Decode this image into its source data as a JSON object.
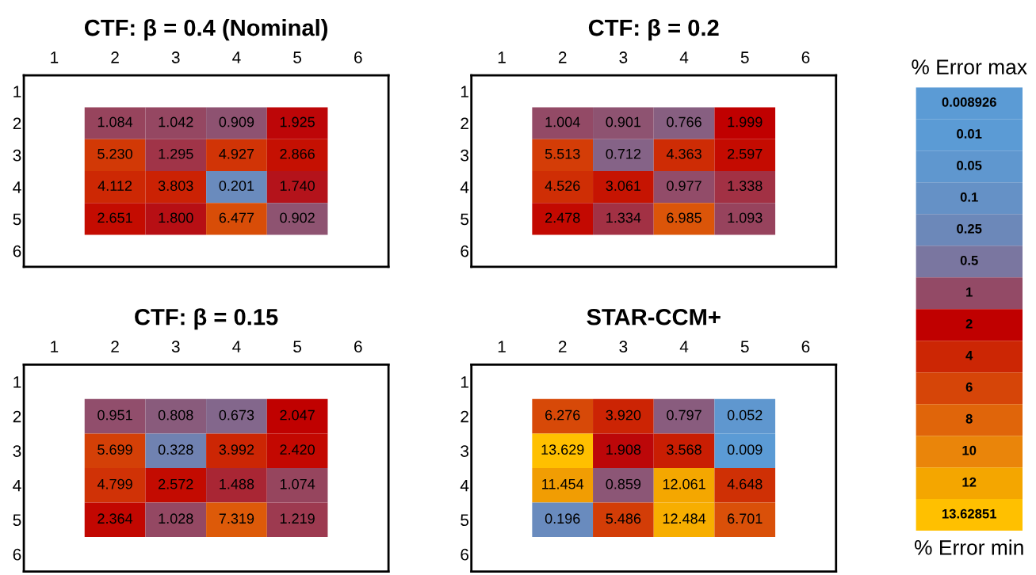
{
  "chart_data": [
    {
      "type": "heatmap",
      "title": "CTF: β = 0.4 (Nominal)",
      "categories": [
        "1",
        "2",
        "3",
        "4",
        "5",
        "6"
      ],
      "y_categories": [
        "1",
        "2",
        "3",
        "4",
        "5",
        "6"
      ],
      "cells": [
        [
          null,
          null,
          null,
          null,
          null,
          null
        ],
        [
          null,
          1.084,
          1.042,
          0.909,
          1.925,
          null
        ],
        [
          null,
          5.23,
          1.295,
          4.927,
          2.866,
          null
        ],
        [
          null,
          4.112,
          3.803,
          0.201,
          1.74,
          null
        ],
        [
          null,
          2.651,
          1.8,
          6.477,
          0.902,
          null
        ],
        [
          null,
          null,
          null,
          null,
          null,
          null
        ]
      ],
      "cell_labels": [
        [
          null,
          null,
          null,
          null,
          null,
          null
        ],
        [
          null,
          "1.084",
          "1.042",
          "0.909",
          "1.925",
          null
        ],
        [
          null,
          "5.230",
          "1.295",
          "4.927",
          "2.866",
          null
        ],
        [
          null,
          "4.112",
          "3.803",
          "0.201",
          "1.740",
          null
        ],
        [
          null,
          "2.651",
          "1.800",
          "6.477",
          "0.902",
          null
        ],
        [
          null,
          null,
          null,
          null,
          null,
          null
        ]
      ]
    },
    {
      "type": "heatmap",
      "title": "CTF: β = 0.2",
      "categories": [
        "1",
        "2",
        "3",
        "4",
        "5",
        "6"
      ],
      "y_categories": [
        "1",
        "2",
        "3",
        "4",
        "5",
        "6"
      ],
      "cells": [
        [
          null,
          null,
          null,
          null,
          null,
          null
        ],
        [
          null,
          1.004,
          0.901,
          0.766,
          1.999,
          null
        ],
        [
          null,
          5.513,
          0.712,
          4.363,
          2.597,
          null
        ],
        [
          null,
          4.526,
          3.061,
          0.977,
          1.338,
          null
        ],
        [
          null,
          2.478,
          1.334,
          6.985,
          1.093,
          null
        ],
        [
          null,
          null,
          null,
          null,
          null,
          null
        ]
      ],
      "cell_labels": [
        [
          null,
          null,
          null,
          null,
          null,
          null
        ],
        [
          null,
          "1.004",
          "0.901",
          "0.766",
          "1.999",
          null
        ],
        [
          null,
          "5.513",
          "0.712",
          "4.363",
          "2.597",
          null
        ],
        [
          null,
          "4.526",
          "3.061",
          "0.977",
          "1.338",
          null
        ],
        [
          null,
          "2.478",
          "1.334",
          "6.985",
          "1.093",
          null
        ],
        [
          null,
          null,
          null,
          null,
          null,
          null
        ]
      ]
    },
    {
      "type": "heatmap",
      "title": "CTF: β = 0.15",
      "categories": [
        "1",
        "2",
        "3",
        "4",
        "5",
        "6"
      ],
      "y_categories": [
        "1",
        "2",
        "3",
        "4",
        "5",
        "6"
      ],
      "cells": [
        [
          null,
          null,
          null,
          null,
          null,
          null
        ],
        [
          null,
          0.951,
          0.808,
          0.673,
          2.047,
          null
        ],
        [
          null,
          5.699,
          0.328,
          3.992,
          2.42,
          null
        ],
        [
          null,
          4.799,
          2.572,
          1.488,
          1.074,
          null
        ],
        [
          null,
          2.364,
          1.028,
          7.319,
          1.219,
          null
        ],
        [
          null,
          null,
          null,
          null,
          null,
          null
        ]
      ],
      "cell_labels": [
        [
          null,
          null,
          null,
          null,
          null,
          null
        ],
        [
          null,
          "0.951",
          "0.808",
          "0.673",
          "2.047",
          null
        ],
        [
          null,
          "5.699",
          "0.328",
          "3.992",
          "2.420",
          null
        ],
        [
          null,
          "4.799",
          "2.572",
          "1.488",
          "1.074",
          null
        ],
        [
          null,
          "2.364",
          "1.028",
          "7.319",
          "1.219",
          null
        ],
        [
          null,
          null,
          null,
          null,
          null,
          null
        ]
      ]
    },
    {
      "type": "heatmap",
      "title": "STAR-CCM+",
      "categories": [
        "1",
        "2",
        "3",
        "4",
        "5",
        "6"
      ],
      "y_categories": [
        "1",
        "2",
        "3",
        "4",
        "5",
        "6"
      ],
      "cells": [
        [
          null,
          null,
          null,
          null,
          null,
          null
        ],
        [
          null,
          6.276,
          3.92,
          0.797,
          0.052,
          null
        ],
        [
          null,
          13.629,
          1.908,
          3.568,
          0.009,
          null
        ],
        [
          null,
          11.454,
          0.859,
          12.061,
          4.648,
          null
        ],
        [
          null,
          0.196,
          5.486,
          12.484,
          6.701,
          null
        ],
        [
          null,
          null,
          null,
          null,
          null,
          null
        ]
      ],
      "cell_labels": [
        [
          null,
          null,
          null,
          null,
          null,
          null
        ],
        [
          null,
          "6.276",
          "3.920",
          "0.797",
          "0.052",
          null
        ],
        [
          null,
          "13.629",
          "1.908",
          "3.568",
          "0.009",
          null
        ],
        [
          null,
          "11.454",
          "0.859",
          "12.061",
          "4.648",
          null
        ],
        [
          null,
          "0.196",
          "5.486",
          "12.484",
          "6.701",
          null
        ],
        [
          null,
          null,
          null,
          null,
          null,
          null
        ]
      ]
    },
    {
      "type": "other",
      "title": "% Error max",
      "annotations": [
        "% Error min"
      ],
      "data_labels": true,
      "values": [
        0.008926,
        0.01,
        0.05,
        0.1,
        0.25,
        0.5,
        1,
        2,
        4,
        6,
        8,
        10,
        12,
        13.62851
      ],
      "colors": [
        "#5b9bd5",
        "#5b9bd5",
        "#5f97cf",
        "#6591c6",
        "#6c88b9",
        "#7a76a0",
        "#934a66",
        "#c00000",
        "#cc2604",
        "#d64508",
        "#e0650a",
        "#ea850a",
        "#f4a600",
        "#ffc000"
      ]
    }
  ]
}
